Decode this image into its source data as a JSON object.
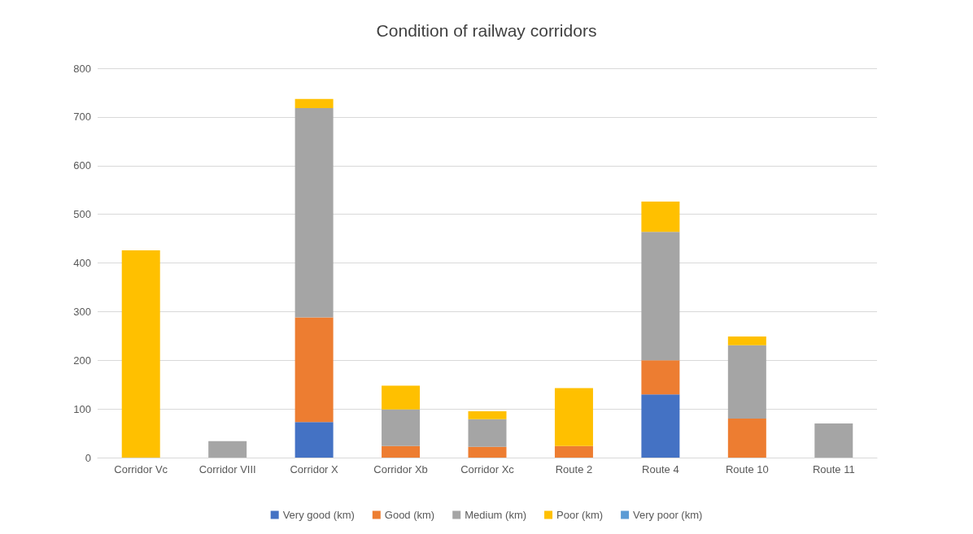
{
  "chart_data": {
    "type": "bar",
    "title": "Condition of railway corridors",
    "stacked": true,
    "categories": [
      "Corridor Vc",
      "Corridor VIII",
      "Corridor X",
      "Corridor Xb",
      "Corridor Xc",
      "Route 2",
      "Route 4",
      "Route 10",
      "Route 11"
    ],
    "series": [
      {
        "name": "Very good (km)",
        "color": "#4472c4",
        "values": [
          null,
          null,
          73,
          null,
          null,
          null,
          130,
          null,
          null
        ]
      },
      {
        "name": "Good (km)",
        "color": "#ed7d31",
        "values": [
          null,
          null,
          215,
          24,
          22,
          24,
          70,
          80,
          null
        ]
      },
      {
        "name": "Medium (km)",
        "color": "#a5a5a5",
        "values": [
          null,
          34,
          430,
          75,
          57,
          null,
          264,
          151,
          70
        ]
      },
      {
        "name": "Poor (km)",
        "color": "#ffc000",
        "values": [
          426,
          null,
          19,
          49,
          16,
          119,
          62,
          18,
          null
        ]
      },
      {
        "name": "Very poor (km)",
        "color": "#5b9bd5",
        "values": [
          null,
          null,
          null,
          null,
          null,
          null,
          null,
          null,
          null
        ]
      }
    ],
    "ylim": [
      0,
      800
    ],
    "yticks": [
      0,
      100,
      200,
      300,
      400,
      500,
      600,
      700,
      800
    ],
    "grid": "y",
    "legend": "bottom"
  }
}
